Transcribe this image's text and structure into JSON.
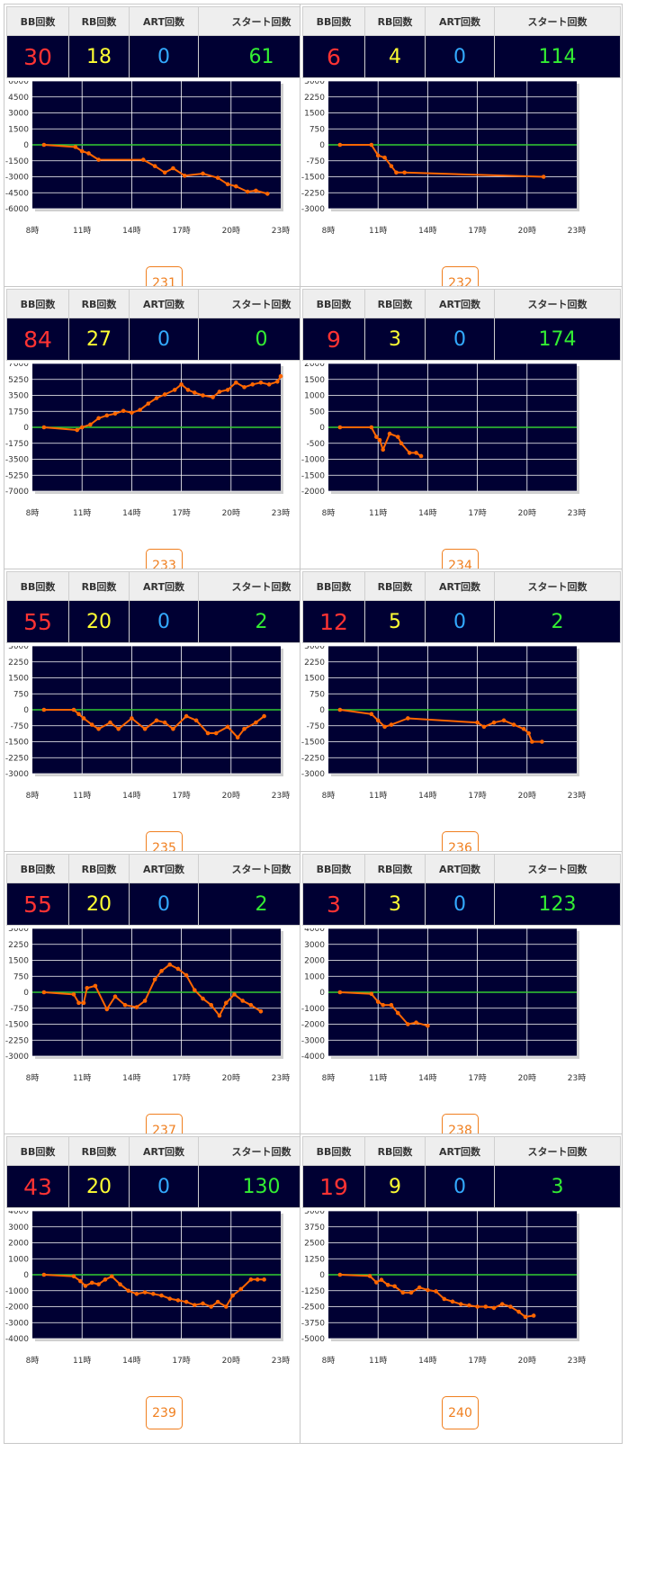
{
  "table_headers": {
    "bb": "BB回数",
    "rb": "RB回数",
    "art": "ART回数",
    "start": "スタート回数"
  },
  "machines": [
    {
      "number": "231",
      "bb": "30",
      "rb": "18",
      "art": "0",
      "start": "61",
      "y_ticks": [
        "6000",
        "4500",
        "3000",
        "1500",
        "0",
        "-1500",
        "-3000",
        "-4500",
        "-6000"
      ]
    },
    {
      "number": "232",
      "bb": "6",
      "rb": "4",
      "art": "0",
      "start": "114",
      "y_ticks": [
        "3000",
        "2250",
        "1500",
        "750",
        "0",
        "-750",
        "-1500",
        "-2250",
        "-3000"
      ]
    },
    {
      "number": "233",
      "bb": "84",
      "rb": "27",
      "art": "0",
      "start": "0",
      "y_ticks": [
        "7000",
        "5250",
        "3500",
        "1750",
        "0",
        "-1750",
        "-3500",
        "-5250",
        "-7000"
      ]
    },
    {
      "number": "234",
      "bb": "9",
      "rb": "3",
      "art": "0",
      "start": "174",
      "y_ticks": [
        "2000",
        "1500",
        "1000",
        "500",
        "0",
        "-500",
        "-1000",
        "-1500",
        "-2000"
      ]
    },
    {
      "number": "235",
      "bb": "55",
      "rb": "20",
      "art": "0",
      "start": "2",
      "y_ticks": [
        "3000",
        "2250",
        "1500",
        "750",
        "0",
        "-750",
        "-1500",
        "-2250",
        "-3000"
      ]
    },
    {
      "number": "236",
      "bb": "12",
      "rb": "5",
      "art": "0",
      "start": "2",
      "y_ticks": [
        "3000",
        "2250",
        "1500",
        "750",
        "0",
        "-750",
        "-1500",
        "-2250",
        "-3000"
      ]
    },
    {
      "number": "237",
      "bb": "55",
      "rb": "20",
      "art": "0",
      "start": "2",
      "y_ticks": [
        "3000",
        "2250",
        "1500",
        "750",
        "0",
        "-750",
        "-1500",
        "-2250",
        "-3000"
      ]
    },
    {
      "number": "238",
      "bb": "3",
      "rb": "3",
      "art": "0",
      "start": "123",
      "y_ticks": [
        "4000",
        "3000",
        "2000",
        "1000",
        "0",
        "-1000",
        "-2000",
        "-3000",
        "-4000"
      ]
    },
    {
      "number": "239",
      "bb": "43",
      "rb": "20",
      "art": "0",
      "start": "130",
      "y_ticks": [
        "4000",
        "3000",
        "2000",
        "1000",
        "0",
        "-1000",
        "-2000",
        "-3000",
        "-4000"
      ]
    },
    {
      "number": "240",
      "bb": "19",
      "rb": "9",
      "art": "0",
      "start": "3",
      "y_ticks": [
        "5000",
        "3750",
        "2500",
        "1250",
        "0",
        "-1250",
        "-2500",
        "-3750",
        "-5000"
      ]
    }
  ],
  "chart_data": [
    {
      "type": "line",
      "xlabels": [
        "8時",
        "11時",
        "14時",
        "17時",
        "20時",
        "23時"
      ],
      "xlim": [
        8,
        23
      ],
      "ylim": [
        -6000,
        6000
      ],
      "colors": {
        "line": "#ff6600",
        "zero": "#33cc33",
        "bg": "#000033"
      },
      "points": [
        [
          8.7,
          0
        ],
        [
          10.6,
          -200
        ],
        [
          11,
          -600
        ],
        [
          11.4,
          -800
        ],
        [
          12,
          -1400
        ],
        [
          14.7,
          -1400
        ],
        [
          15.4,
          -2000
        ],
        [
          16,
          -2600
        ],
        [
          16.5,
          -2200
        ],
        [
          17.2,
          -2900
        ],
        [
          18.3,
          -2700
        ],
        [
          19.2,
          -3100
        ],
        [
          19.8,
          -3700
        ],
        [
          20.3,
          -3900
        ],
        [
          21,
          -4400
        ],
        [
          21.5,
          -4300
        ],
        [
          22.2,
          -4600
        ]
      ]
    },
    {
      "type": "line",
      "xlabels": [
        "8時",
        "11時",
        "14時",
        "17時",
        "20時",
        "23時"
      ],
      "xlim": [
        8,
        23
      ],
      "ylim": [
        -3000,
        3000
      ],
      "colors": {
        "line": "#ff6600",
        "zero": "#33cc33",
        "bg": "#000033"
      },
      "points": [
        [
          8.7,
          0
        ],
        [
          10.6,
          0
        ],
        [
          11,
          -500
        ],
        [
          11.4,
          -600
        ],
        [
          11.8,
          -1000
        ],
        [
          12.1,
          -1300
        ],
        [
          12.6,
          -1300
        ],
        [
          21,
          -1500
        ]
      ]
    },
    {
      "type": "line",
      "xlabels": [
        "8時",
        "11時",
        "14時",
        "17時",
        "20時",
        "23時"
      ],
      "xlim": [
        8,
        23
      ],
      "ylim": [
        -7000,
        7000
      ],
      "colors": {
        "line": "#ff6600",
        "zero": "#33cc33",
        "bg": "#000033"
      },
      "points": [
        [
          8.7,
          0
        ],
        [
          10.7,
          -300
        ],
        [
          11,
          0
        ],
        [
          11.5,
          300
        ],
        [
          12,
          1000
        ],
        [
          12.5,
          1300
        ],
        [
          13,
          1500
        ],
        [
          13.5,
          1800
        ],
        [
          14,
          1600
        ],
        [
          14.5,
          1900
        ],
        [
          15,
          2600
        ],
        [
          15.5,
          3200
        ],
        [
          16,
          3600
        ],
        [
          16.6,
          4100
        ],
        [
          17,
          4700
        ],
        [
          17.4,
          4100
        ],
        [
          17.8,
          3800
        ],
        [
          18.3,
          3500
        ],
        [
          18.9,
          3300
        ],
        [
          19.3,
          3900
        ],
        [
          19.8,
          4100
        ],
        [
          20.3,
          4900
        ],
        [
          20.8,
          4400
        ],
        [
          21.3,
          4700
        ],
        [
          21.8,
          4900
        ],
        [
          22.3,
          4700
        ],
        [
          22.8,
          5000
        ],
        [
          23,
          5600
        ]
      ]
    },
    {
      "type": "line",
      "xlabels": [
        "8時",
        "11時",
        "14時",
        "17時",
        "20時",
        "23時"
      ],
      "xlim": [
        8,
        23
      ],
      "ylim": [
        -2000,
        2000
      ],
      "colors": {
        "line": "#ff6600",
        "zero": "#33cc33",
        "bg": "#000033"
      },
      "points": [
        [
          8.7,
          0
        ],
        [
          10.6,
          0
        ],
        [
          10.9,
          -300
        ],
        [
          11.1,
          -400
        ],
        [
          11.3,
          -700
        ],
        [
          11.7,
          -200
        ],
        [
          12.2,
          -300
        ],
        [
          12.4,
          -500
        ],
        [
          12.9,
          -800
        ],
        [
          13.3,
          -800
        ],
        [
          13.6,
          -900
        ]
      ]
    },
    {
      "type": "line",
      "xlabels": [
        "8時",
        "11時",
        "14時",
        "17時",
        "20時",
        "23時"
      ],
      "xlim": [
        8,
        23
      ],
      "ylim": [
        -3000,
        3000
      ],
      "colors": {
        "line": "#ff6600",
        "zero": "#33cc33",
        "bg": "#000033"
      },
      "points": [
        [
          8.7,
          0
        ],
        [
          10.5,
          0
        ],
        [
          10.8,
          -200
        ],
        [
          11.1,
          -400
        ],
        [
          11.6,
          -700
        ],
        [
          12,
          -900
        ],
        [
          12.7,
          -600
        ],
        [
          13.2,
          -900
        ],
        [
          14,
          -400
        ],
        [
          14.8,
          -900
        ],
        [
          15.5,
          -500
        ],
        [
          16,
          -600
        ],
        [
          16.5,
          -900
        ],
        [
          17.3,
          -300
        ],
        [
          17.9,
          -500
        ],
        [
          18.6,
          -1100
        ],
        [
          19.1,
          -1100
        ],
        [
          19.8,
          -800
        ],
        [
          20.4,
          -1300
        ],
        [
          20.8,
          -900
        ],
        [
          21.5,
          -600
        ],
        [
          22,
          -300
        ]
      ]
    },
    {
      "type": "line",
      "xlabels": [
        "8時",
        "11時",
        "14時",
        "17時",
        "20時",
        "23時"
      ],
      "xlim": [
        8,
        23
      ],
      "ylim": [
        -3000,
        3000
      ],
      "colors": {
        "line": "#ff6600",
        "zero": "#33cc33",
        "bg": "#000033"
      },
      "points": [
        [
          8.7,
          0
        ],
        [
          10.6,
          -200
        ],
        [
          11,
          -500
        ],
        [
          11.4,
          -800
        ],
        [
          11.8,
          -700
        ],
        [
          12.8,
          -400
        ],
        [
          17,
          -600
        ],
        [
          17.4,
          -800
        ],
        [
          18,
          -600
        ],
        [
          18.6,
          -500
        ],
        [
          19.2,
          -700
        ],
        [
          19.8,
          -900
        ],
        [
          20.1,
          -1100
        ],
        [
          20.3,
          -1500
        ],
        [
          20.9,
          -1500
        ]
      ]
    },
    {
      "type": "line",
      "xlabels": [
        "8時",
        "11時",
        "14時",
        "17時",
        "20時",
        "23時"
      ],
      "xlim": [
        8,
        23
      ],
      "ylim": [
        -3000,
        3000
      ],
      "colors": {
        "line": "#ff6600",
        "zero": "#33cc33",
        "bg": "#000033"
      },
      "points": [
        [
          8.7,
          0
        ],
        [
          10.5,
          -100
        ],
        [
          10.8,
          -500
        ],
        [
          11.1,
          -500
        ],
        [
          11.3,
          200
        ],
        [
          11.8,
          300
        ],
        [
          12.5,
          -800
        ],
        [
          13,
          -200
        ],
        [
          13.6,
          -600
        ],
        [
          14.3,
          -700
        ],
        [
          14.8,
          -400
        ],
        [
          15.4,
          600
        ],
        [
          15.8,
          1000
        ],
        [
          16.3,
          1300
        ],
        [
          16.8,
          1100
        ],
        [
          17.3,
          800
        ],
        [
          17.8,
          100
        ],
        [
          18.3,
          -300
        ],
        [
          18.8,
          -600
        ],
        [
          19.3,
          -1100
        ],
        [
          19.7,
          -500
        ],
        [
          20.2,
          -100
        ],
        [
          20.7,
          -400
        ],
        [
          21.2,
          -600
        ],
        [
          21.8,
          -900
        ]
      ]
    },
    {
      "type": "line",
      "xlabels": [
        "8時",
        "11時",
        "14時",
        "17時",
        "20時",
        "23時"
      ],
      "xlim": [
        8,
        23
      ],
      "ylim": [
        -4000,
        4000
      ],
      "colors": {
        "line": "#ff6600",
        "zero": "#33cc33",
        "bg": "#000033"
      },
      "points": [
        [
          8.7,
          0
        ],
        [
          10.6,
          -100
        ],
        [
          11,
          -600
        ],
        [
          11.3,
          -800
        ],
        [
          11.8,
          -800
        ],
        [
          12.2,
          -1300
        ],
        [
          12.8,
          -2000
        ],
        [
          13.3,
          -1900
        ],
        [
          14,
          -2100
        ]
      ]
    },
    {
      "type": "line",
      "xlabels": [
        "8時",
        "11時",
        "14時",
        "17時",
        "20時",
        "23時"
      ],
      "xlim": [
        8,
        23
      ],
      "ylim": [
        -4000,
        4000
      ],
      "colors": {
        "line": "#ff6600",
        "zero": "#33cc33",
        "bg": "#000033"
      },
      "points": [
        [
          8.7,
          0
        ],
        [
          10.5,
          -100
        ],
        [
          10.9,
          -400
        ],
        [
          11.2,
          -700
        ],
        [
          11.6,
          -500
        ],
        [
          12,
          -600
        ],
        [
          12.4,
          -300
        ],
        [
          12.8,
          -100
        ],
        [
          13.3,
          -600
        ],
        [
          13.8,
          -1000
        ],
        [
          14.3,
          -1200
        ],
        [
          14.8,
          -1100
        ],
        [
          15.3,
          -1200
        ],
        [
          15.8,
          -1300
        ],
        [
          16.3,
          -1500
        ],
        [
          16.8,
          -1600
        ],
        [
          17.3,
          -1700
        ],
        [
          17.8,
          -1900
        ],
        [
          18.3,
          -1800
        ],
        [
          18.8,
          -2000
        ],
        [
          19.2,
          -1700
        ],
        [
          19.7,
          -2000
        ],
        [
          20.1,
          -1300
        ],
        [
          20.6,
          -900
        ],
        [
          21.2,
          -300
        ],
        [
          21.6,
          -300
        ],
        [
          22,
          -300
        ]
      ]
    },
    {
      "type": "line",
      "xlabels": [
        "8時",
        "11時",
        "14時",
        "17時",
        "20時",
        "23時"
      ],
      "xlim": [
        8,
        23
      ],
      "ylim": [
        -5000,
        5000
      ],
      "colors": {
        "line": "#ff6600",
        "zero": "#33cc33",
        "bg": "#000033"
      },
      "points": [
        [
          8.7,
          0
        ],
        [
          10.5,
          -100
        ],
        [
          10.9,
          -600
        ],
        [
          11.2,
          -400
        ],
        [
          11.6,
          -800
        ],
        [
          12,
          -900
        ],
        [
          12.5,
          -1400
        ],
        [
          13,
          -1400
        ],
        [
          13.5,
          -1000
        ],
        [
          14,
          -1200
        ],
        [
          14.5,
          -1300
        ],
        [
          15,
          -1900
        ],
        [
          15.5,
          -2100
        ],
        [
          16,
          -2300
        ],
        [
          16.5,
          -2400
        ],
        [
          17,
          -2500
        ],
        [
          17.5,
          -2500
        ],
        [
          18,
          -2600
        ],
        [
          18.5,
          -2300
        ],
        [
          19,
          -2500
        ],
        [
          19.5,
          -2900
        ],
        [
          19.9,
          -3300
        ],
        [
          20.4,
          -3200
        ]
      ]
    }
  ]
}
